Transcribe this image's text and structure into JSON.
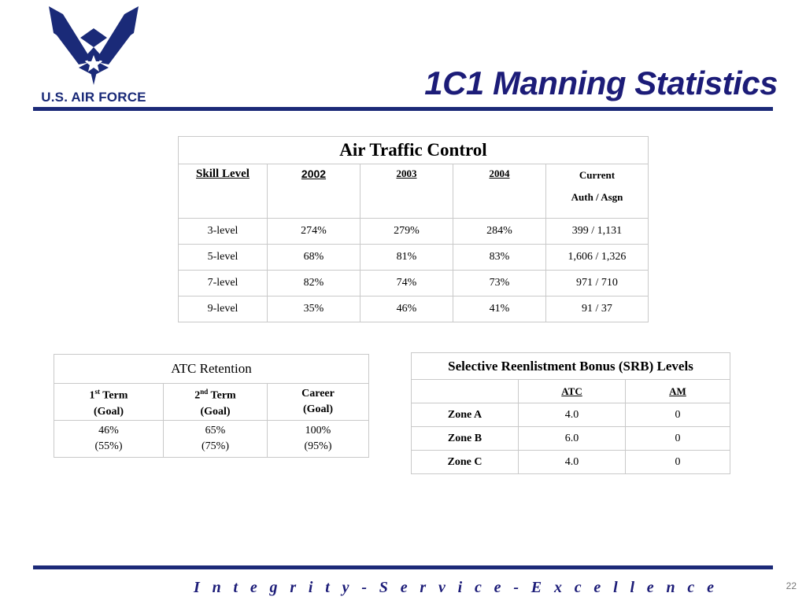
{
  "logo": {
    "text": "U.S. AIR FORCE",
    "icon": "air-force-wings-icon",
    "color": "#1a2a78"
  },
  "title": "1C1 Manning Statistics",
  "atc_table": {
    "caption": "Air Traffic Control",
    "headers": {
      "skill": "Skill Level",
      "y1": "2002",
      "y2": "2003",
      "y3": "2004",
      "cur1": "Current",
      "cur2": "Auth / Asgn"
    },
    "rows": [
      [
        "3-level",
        "274%",
        "279%",
        "284%",
        "399 / 1,131"
      ],
      [
        "5-level",
        "68%",
        "81%",
        "83%",
        "1,606 / 1,326"
      ],
      [
        "7-level",
        "82%",
        "74%",
        "73%",
        "971 / 710"
      ],
      [
        "9-level",
        "35%",
        "46%",
        "41%",
        "91 / 37"
      ]
    ]
  },
  "retention": {
    "caption": "ATC  Retention",
    "headers": {
      "c1_num": "1",
      "c1_sup": "st",
      "c1_rest": " Term",
      "c1_goal": "(Goal)",
      "c2_num": "2",
      "c2_sup": "nd",
      "c2_rest": " Term",
      "c2_goal": "(Goal)",
      "c3_a": "Career",
      "c3_goal": "(Goal)"
    },
    "values": [
      {
        "value": "46%",
        "goal": "(55%)"
      },
      {
        "value": "65%",
        "goal": "(75%)"
      },
      {
        "value": "100%",
        "goal": "(95%)"
      }
    ]
  },
  "srb": {
    "caption": "Selective Reenlistment Bonus (SRB) Levels",
    "headers": [
      "",
      "ATC",
      "AM"
    ],
    "rows": [
      [
        "Zone A",
        "4.0",
        "0"
      ],
      [
        "Zone B",
        "6.0",
        "0"
      ],
      [
        "Zone C",
        "4.0",
        "0"
      ]
    ]
  },
  "footer": "I n t e g r i t y  -  S e r v i c e  -  E x c e l l e n c e",
  "page_number": "22",
  "colors": {
    "brand_blue": "#1c2a78",
    "title_blue": "#1c1c78"
  }
}
